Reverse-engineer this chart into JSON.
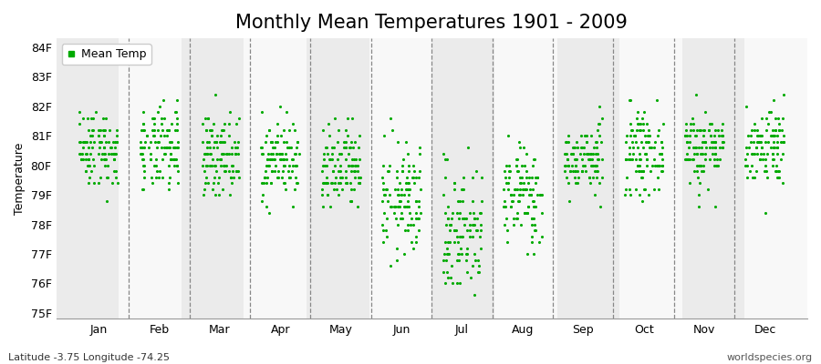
{
  "title": "Monthly Mean Temperatures 1901 - 2009",
  "ylabel": "Temperature",
  "xlabel_months": [
    "Jan",
    "Feb",
    "Mar",
    "Apr",
    "May",
    "Jun",
    "Jul",
    "Aug",
    "Sep",
    "Oct",
    "Nov",
    "Dec"
  ],
  "ytick_labels": [
    "75F",
    "76F",
    "77F",
    "78F",
    "79F",
    "80F",
    "81F",
    "82F",
    "83F",
    "84F"
  ],
  "ytick_values": [
    75,
    76,
    77,
    78,
    79,
    80,
    81,
    82,
    83,
    84
  ],
  "ylim": [
    74.8,
    84.3
  ],
  "dot_color": "#00AA00",
  "legend_label": "Mean Temp",
  "background_color_odd": "#EBEBEB",
  "background_color_even": "#F8F8F8",
  "footer_left": "Latitude -3.75 Longitude -74.25",
  "footer_right": "worldspecies.org",
  "title_fontsize": 15,
  "axis_label_fontsize": 9,
  "tick_fontsize": 9,
  "footer_fontsize": 8,
  "monthly_means": [
    80.6,
    80.5,
    80.4,
    80.2,
    79.8,
    78.8,
    77.8,
    79.0,
    80.2,
    80.4,
    80.6,
    80.7
  ],
  "monthly_stds": [
    0.65,
    0.7,
    0.65,
    0.65,
    0.75,
    0.95,
    1.1,
    0.85,
    0.55,
    0.65,
    0.65,
    0.65
  ],
  "n_years": 109,
  "random_seed": 42
}
